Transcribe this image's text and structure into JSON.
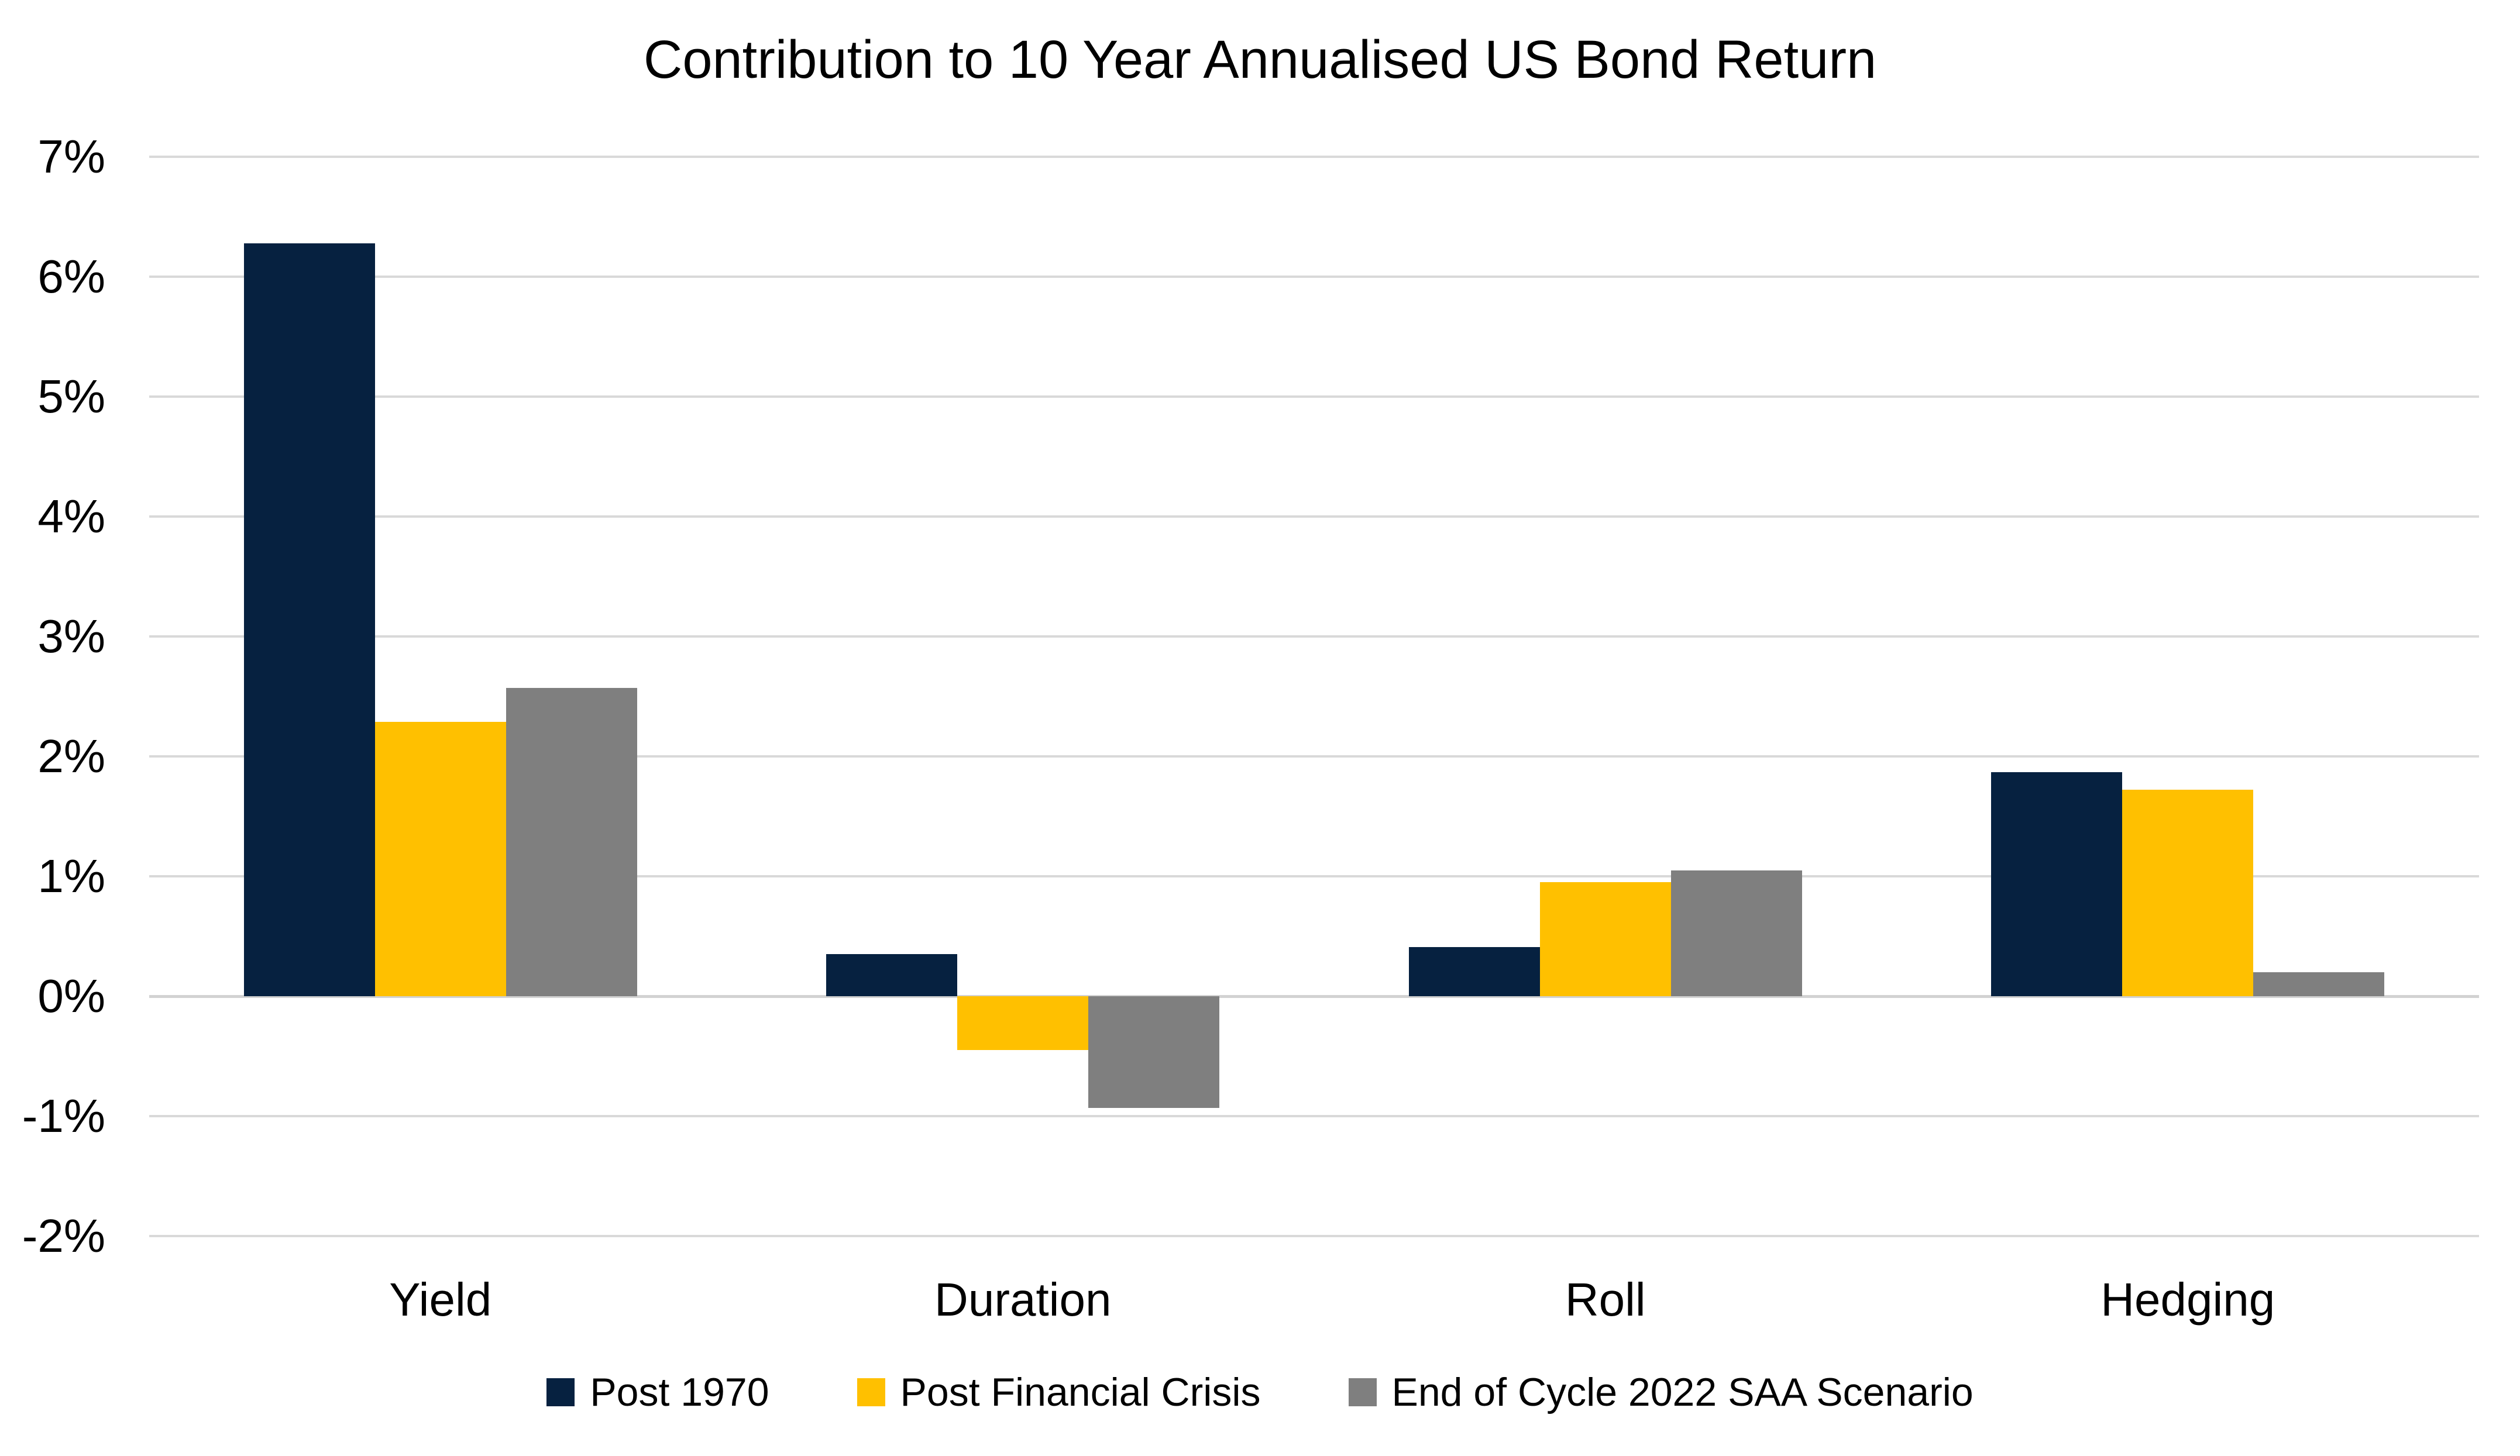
{
  "title": "Contribution to 10 Year Annualised US Bond Return",
  "chart_data": {
    "type": "bar",
    "title": "Contribution to 10 Year Annualised US Bond Return",
    "categories": [
      "Yield",
      "Duration",
      "Roll",
      "Hedging"
    ],
    "series": [
      {
        "name": "Post 1970",
        "color": "#062140",
        "values": [
          6.28,
          0.35,
          0.41,
          1.87
        ]
      },
      {
        "name": "Post Financial Crisis",
        "color": "#FFC000",
        "values": [
          2.29,
          -0.45,
          0.95,
          1.72
        ]
      },
      {
        "name": "End of Cycle 2022 SAA Scenario",
        "color": "#7F7F7F",
        "values": [
          2.57,
          -0.93,
          1.05,
          0.2
        ]
      }
    ],
    "xlabel": "",
    "ylabel": "",
    "ylim": [
      -2,
      7
    ],
    "y_ticks": [
      7,
      6,
      5,
      4,
      3,
      2,
      1,
      0,
      -1,
      -2
    ],
    "y_tick_labels": [
      "7%",
      "6%",
      "5%",
      "4%",
      "3%",
      "2%",
      "1%",
      "0%",
      "-1%",
      "-2%"
    ],
    "grid": "horizontal",
    "gridline_color": "#D9D9D9",
    "zero_line_color": "#D2D2D2",
    "legend_position": "bottom",
    "background": "#FFFFFF",
    "text_color": "#000000"
  }
}
